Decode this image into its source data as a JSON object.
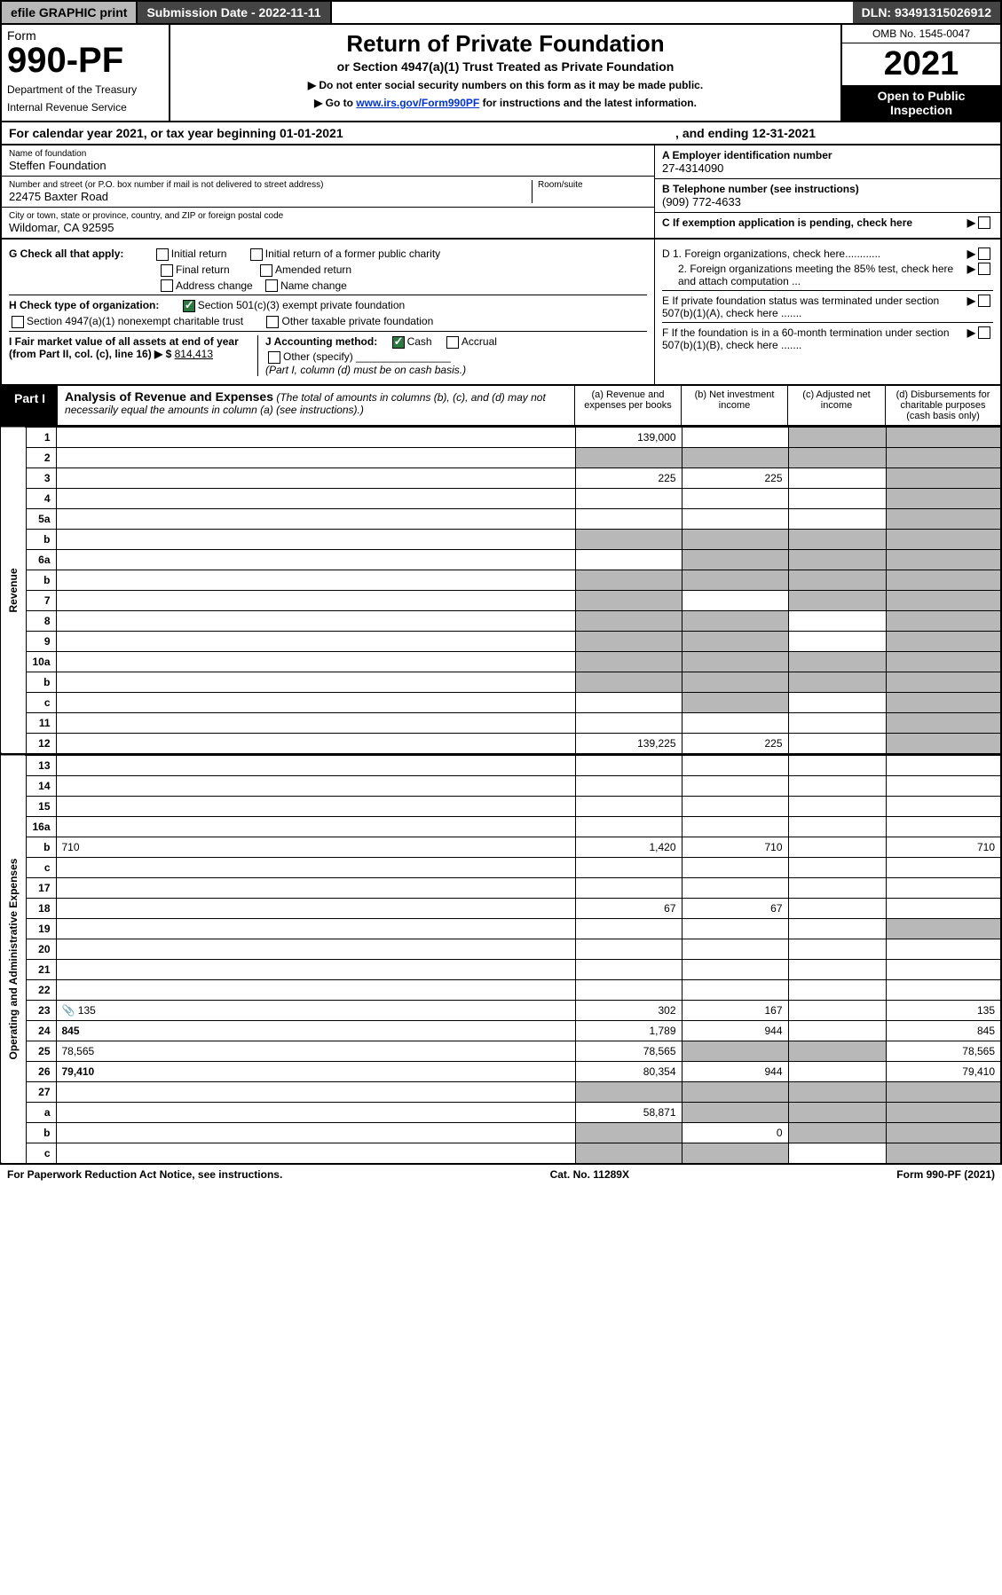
{
  "topbar": {
    "efile": "efile GRAPHIC print",
    "submission_label": "Submission Date - 2022-11-11",
    "dln": "DLN: 93491315026912"
  },
  "header": {
    "form_prefix": "Form",
    "form_number": "990-PF",
    "dept": "Department of the Treasury",
    "irs": "Internal Revenue Service",
    "title": "Return of Private Foundation",
    "subtitle": "or Section 4947(a)(1) Trust Treated as Private Foundation",
    "note1": "▶ Do not enter social security numbers on this form as it may be made public.",
    "note2_pre": "▶ Go to ",
    "note2_link": "www.irs.gov/Form990PF",
    "note2_post": " for instructions and the latest information.",
    "omb": "OMB No. 1545-0047",
    "year": "2021",
    "open": "Open to Public Inspection"
  },
  "calendar": {
    "text_a": "For calendar year 2021, or tax year beginning 01-01-2021",
    "text_b": ", and ending 12-31-2021"
  },
  "id": {
    "name_label": "Name of foundation",
    "name": "Steffen Foundation",
    "addr_label": "Number and street (or P.O. box number if mail is not delivered to street address)",
    "room_label": "Room/suite",
    "addr": "22475 Baxter Road",
    "city_label": "City or town, state or province, country, and ZIP or foreign postal code",
    "city": "Wildomar, CA  92595",
    "a_label": "A Employer identification number",
    "a_val": "27-4314090",
    "b_label": "B Telephone number (see instructions)",
    "b_val": "(909) 772-4633",
    "c_label": "C If exemption application is pending, check here"
  },
  "checks": {
    "g_label": "G Check all that apply:",
    "g_opts": [
      "Initial return",
      "Initial return of a former public charity",
      "Final return",
      "Amended return",
      "Address change",
      "Name change"
    ],
    "h_label": "H Check type of organization:",
    "h1": "Section 501(c)(3) exempt private foundation",
    "h2": "Section 4947(a)(1) nonexempt charitable trust",
    "h3": "Other taxable private foundation",
    "i_label": "I Fair market value of all assets at end of year (from Part II, col. (c), line 16) ▶ $",
    "i_val": "814,413",
    "j_label": "J Accounting method:",
    "j1": "Cash",
    "j2": "Accrual",
    "j3": "Other (specify)",
    "j_note": "(Part I, column (d) must be on cash basis.)",
    "d1": "D 1. Foreign organizations, check here............",
    "d2": "2. Foreign organizations meeting the 85% test, check here and attach computation ...",
    "e": "E  If private foundation status was terminated under section 507(b)(1)(A), check here .......",
    "f": "F  If the foundation is in a 60-month termination under section 507(b)(1)(B), check here .......",
    "arrow": "▶"
  },
  "part1": {
    "label": "Part I",
    "title": "Analysis of Revenue and Expenses",
    "note": "(The total of amounts in columns (b), (c), and (d) may not necessarily equal the amounts in column (a) (see instructions).)",
    "cols": {
      "a": "(a)   Revenue and expenses per books",
      "b": "(b)   Net investment income",
      "c": "(c)   Adjusted net income",
      "d": "(d)   Disbursements for charitable purposes (cash basis only)"
    }
  },
  "sections": {
    "revenue": "Revenue",
    "opex": "Operating and Administrative Expenses"
  },
  "rows": [
    {
      "n": "1",
      "d": "",
      "a": "139,000",
      "b": "",
      "c": "",
      "sh": [
        "c",
        "d"
      ]
    },
    {
      "n": "2",
      "d": "",
      "a": "",
      "b": "",
      "c": "",
      "sh": [
        "a",
        "b",
        "c",
        "d"
      ]
    },
    {
      "n": "3",
      "d": "",
      "a": "225",
      "b": "225",
      "c": "",
      "sh": [
        "d"
      ]
    },
    {
      "n": "4",
      "d": "",
      "a": "",
      "b": "",
      "c": "",
      "sh": [
        "d"
      ]
    },
    {
      "n": "5a",
      "d": "",
      "a": "",
      "b": "",
      "c": "",
      "sh": [
        "d"
      ]
    },
    {
      "n": "b",
      "d": "",
      "a": "",
      "b": "",
      "c": "",
      "sh": [
        "a",
        "b",
        "c",
        "d"
      ]
    },
    {
      "n": "6a",
      "d": "",
      "a": "",
      "b": "",
      "c": "",
      "sh": [
        "b",
        "c",
        "d"
      ]
    },
    {
      "n": "b",
      "d": "",
      "a": "",
      "b": "",
      "c": "",
      "sh": [
        "a",
        "b",
        "c",
        "d"
      ]
    },
    {
      "n": "7",
      "d": "",
      "a": "",
      "b": "",
      "c": "",
      "sh": [
        "a",
        "c",
        "d"
      ]
    },
    {
      "n": "8",
      "d": "",
      "a": "",
      "b": "",
      "c": "",
      "sh": [
        "a",
        "b",
        "d"
      ]
    },
    {
      "n": "9",
      "d": "",
      "a": "",
      "b": "",
      "c": "",
      "sh": [
        "a",
        "b",
        "d"
      ]
    },
    {
      "n": "10a",
      "d": "",
      "a": "",
      "b": "",
      "c": "",
      "sh": [
        "a",
        "b",
        "c",
        "d"
      ]
    },
    {
      "n": "b",
      "d": "",
      "a": "",
      "b": "",
      "c": "",
      "sh": [
        "a",
        "b",
        "c",
        "d"
      ]
    },
    {
      "n": "c",
      "d": "",
      "a": "",
      "b": "",
      "c": "",
      "sh": [
        "b",
        "d"
      ]
    },
    {
      "n": "11",
      "d": "",
      "a": "",
      "b": "",
      "c": "",
      "sh": [
        "d"
      ]
    },
    {
      "n": "12",
      "d": "",
      "a": "139,225",
      "b": "225",
      "c": "",
      "sh": [
        "d"
      ],
      "bold": true
    }
  ],
  "exprows": [
    {
      "n": "13",
      "d": "",
      "a": "",
      "b": "",
      "c": ""
    },
    {
      "n": "14",
      "d": "",
      "a": "",
      "b": "",
      "c": ""
    },
    {
      "n": "15",
      "d": "",
      "a": "",
      "b": "",
      "c": ""
    },
    {
      "n": "16a",
      "d": "",
      "a": "",
      "b": "",
      "c": ""
    },
    {
      "n": "b",
      "d": "710",
      "a": "1,420",
      "b": "710",
      "c": ""
    },
    {
      "n": "c",
      "d": "",
      "a": "",
      "b": "",
      "c": ""
    },
    {
      "n": "17",
      "d": "",
      "a": "",
      "b": "",
      "c": ""
    },
    {
      "n": "18",
      "d": "",
      "a": "67",
      "b": "67",
      "c": ""
    },
    {
      "n": "19",
      "d": "",
      "a": "",
      "b": "",
      "c": "",
      "sh": [
        "d"
      ]
    },
    {
      "n": "20",
      "d": "",
      "a": "",
      "b": "",
      "c": ""
    },
    {
      "n": "21",
      "d": "",
      "a": "",
      "b": "",
      "c": ""
    },
    {
      "n": "22",
      "d": "",
      "a": "",
      "b": "",
      "c": ""
    },
    {
      "n": "23",
      "d": "135",
      "a": "302",
      "b": "167",
      "c": "",
      "icon": true
    },
    {
      "n": "24",
      "d": "845",
      "a": "1,789",
      "b": "944",
      "c": "",
      "bold": true
    },
    {
      "n": "25",
      "d": "78,565",
      "a": "78,565",
      "b": "",
      "c": "",
      "sh": [
        "b",
        "c"
      ]
    },
    {
      "n": "26",
      "d": "79,410",
      "a": "80,354",
      "b": "944",
      "c": "",
      "bold": true
    },
    {
      "n": "27",
      "d": "",
      "a": "",
      "b": "",
      "c": "",
      "sh": [
        "a",
        "b",
        "c",
        "d"
      ]
    },
    {
      "n": "a",
      "d": "",
      "a": "58,871",
      "b": "",
      "c": "",
      "bold": true,
      "sh": [
        "b",
        "c",
        "d"
      ]
    },
    {
      "n": "b",
      "d": "",
      "a": "",
      "b": "0",
      "c": "",
      "bold": true,
      "sh": [
        "a",
        "c",
        "d"
      ]
    },
    {
      "n": "c",
      "d": "",
      "a": "",
      "b": "",
      "c": "",
      "bold": true,
      "sh": [
        "a",
        "b",
        "d"
      ]
    }
  ],
  "footer": {
    "left": "For Paperwork Reduction Act Notice, see instructions.",
    "mid": "Cat. No. 11289X",
    "right": "Form 990-PF (2021)"
  }
}
